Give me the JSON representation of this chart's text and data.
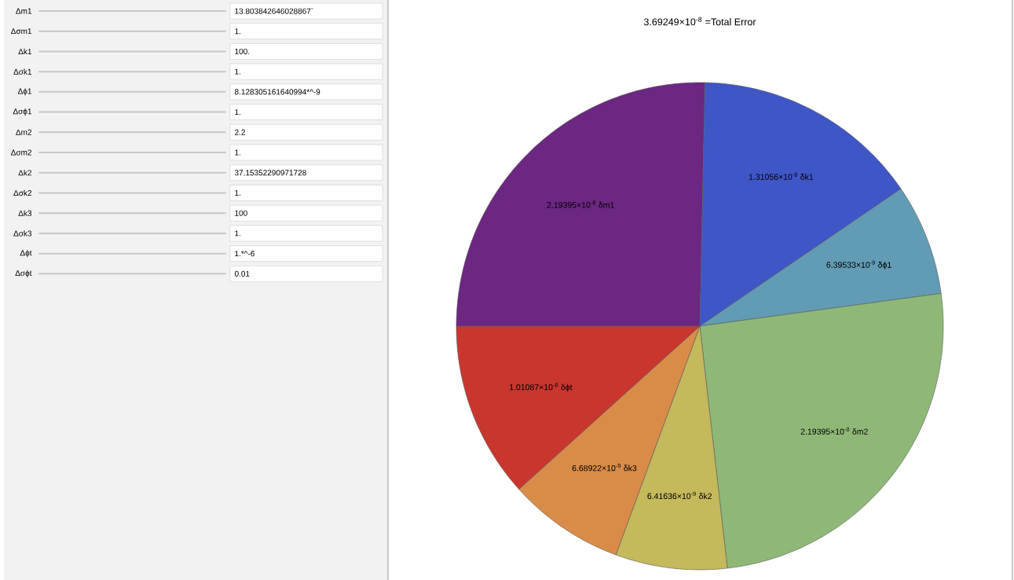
{
  "chart_data": [
    {
      "type": "pie",
      "title": "3.69249×10$^{-8}$ =Total Error",
      "categories": [
        "δm1",
        "δk1",
        "δϕ1",
        "δm2",
        "δk2",
        "δk3",
        "δϕt"
      ],
      "values": [
        2.19395e-08,
        1.31056e-08,
        6.39533e-09,
        2.19395e-08,
        6.41636e-09,
        6.68922e-09,
        1.01087e-08
      ],
      "value_labels": [
        "2.19395×10$^{-8}$",
        "1.31056×10$^{-8}$",
        "6.39533×10$^{-9}$",
        "2.19395×10$^{-8}$",
        "6.41636×10$^{-9}$",
        "6.68922×10$^{-9}$",
        "1.01087×10$^{-8}$"
      ],
      "colors": [
        "#6b2782",
        "#3f56c6",
        "#629bb4",
        "#8fb878",
        "#c4b95b",
        "#d98c48",
        "#c9362e"
      ]
    },
    {
      "type": "other",
      "annotations": [
        "Δm1",
        "13.803842646028867`",
        "Δσm1",
        "1.",
        "Δk1",
        "100.",
        "Δσk1",
        "1.",
        "Δϕ1",
        "8.128305161640994*^-9",
        "Δσϕ1",
        "1.",
        "Δm2",
        "2.2",
        "Δσm2",
        "1.",
        "Δk2",
        "37.15352290971728",
        "Δσk2",
        "1.",
        "Δk3",
        "100",
        "Δσk3",
        "1.",
        "Δϕt",
        "1.*^-6",
        "Δσϕt",
        "0.01"
      ]
    }
  ]
}
